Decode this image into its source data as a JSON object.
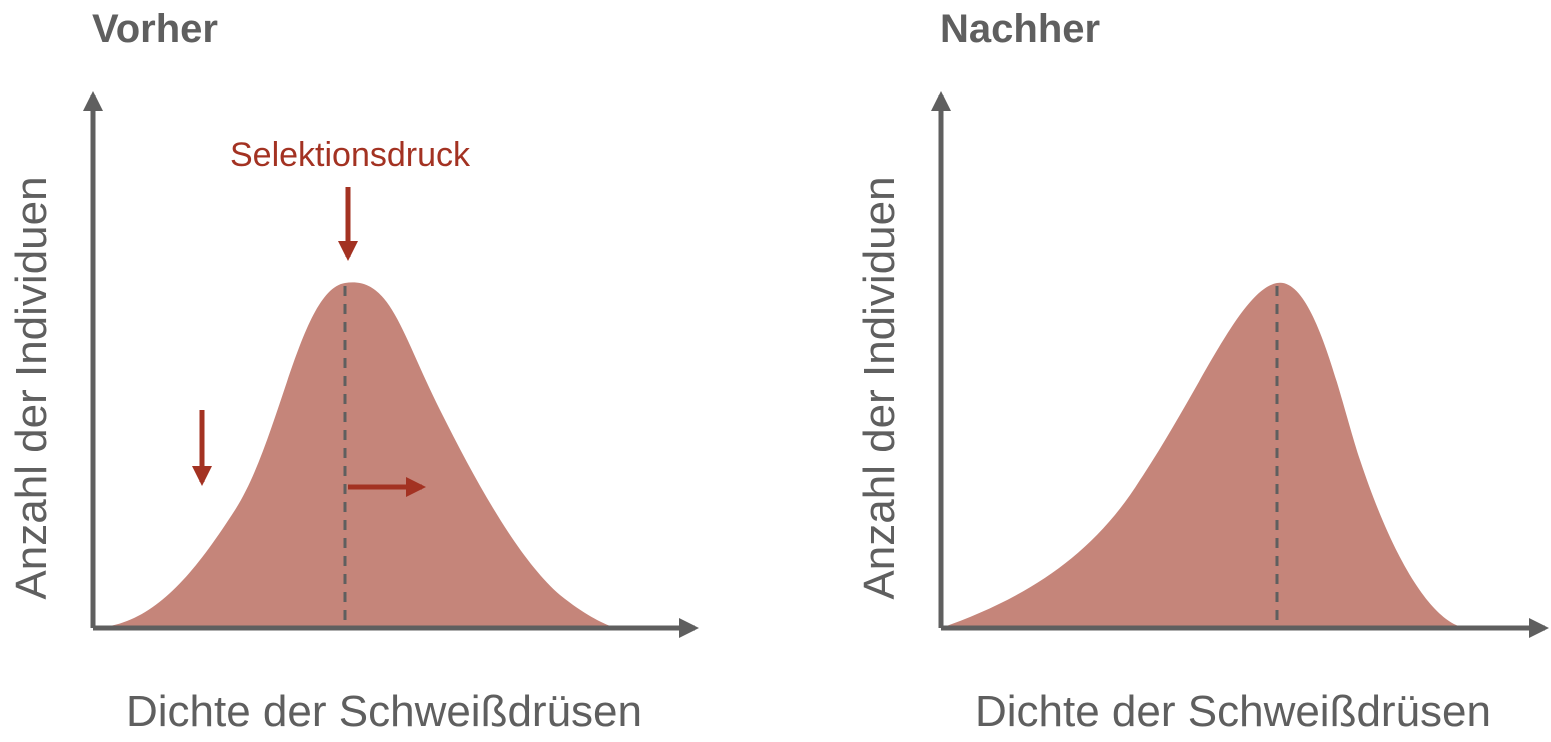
{
  "panels": [
    {
      "title": "Vorher",
      "y_label": "Anzahl der Individuen",
      "x_label": "Dichte der Schweißdrüsen",
      "annotation": "Selektionsdruck"
    },
    {
      "title": "Nachher",
      "y_label": "Anzahl der Individuen",
      "x_label": "Dichte der Schweißdrüsen"
    }
  ]
}
